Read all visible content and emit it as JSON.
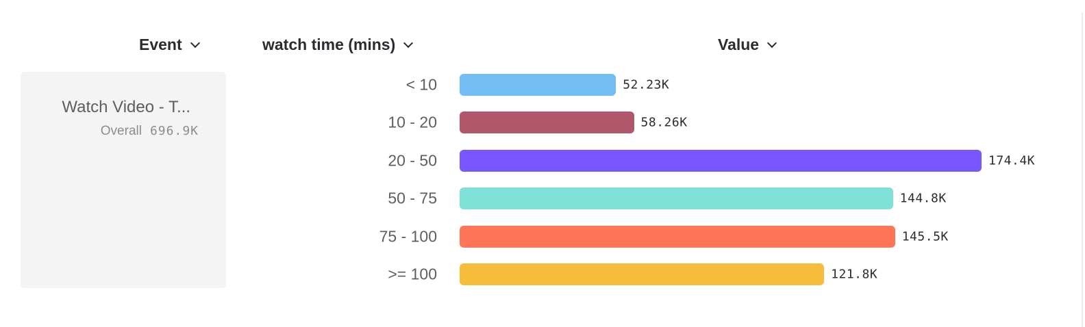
{
  "headers": {
    "event": "Event",
    "breakdown": "watch time (mins)",
    "value": "Value"
  },
  "event_card": {
    "name": "Watch Video - T...",
    "overall_label": "Overall",
    "overall_value": "696.9K"
  },
  "chart_data": {
    "type": "bar",
    "orientation": "horizontal",
    "categories": [
      "< 10",
      "10 - 20",
      "20 - 50",
      "50 - 75",
      "75 - 100",
      ">= 100"
    ],
    "values": [
      52230,
      58260,
      174400,
      144800,
      145500,
      121800
    ],
    "labels": [
      "52.23K",
      "58.26K",
      "174.4K",
      "144.8K",
      "145.5K",
      "121.8K"
    ],
    "colors": [
      "#72bef4",
      "#b1566b",
      "#7856ff",
      "#80e1d9",
      "#ff7557",
      "#f8bc3b"
    ],
    "xlim": [
      0,
      174400
    ],
    "grid": false
  }
}
